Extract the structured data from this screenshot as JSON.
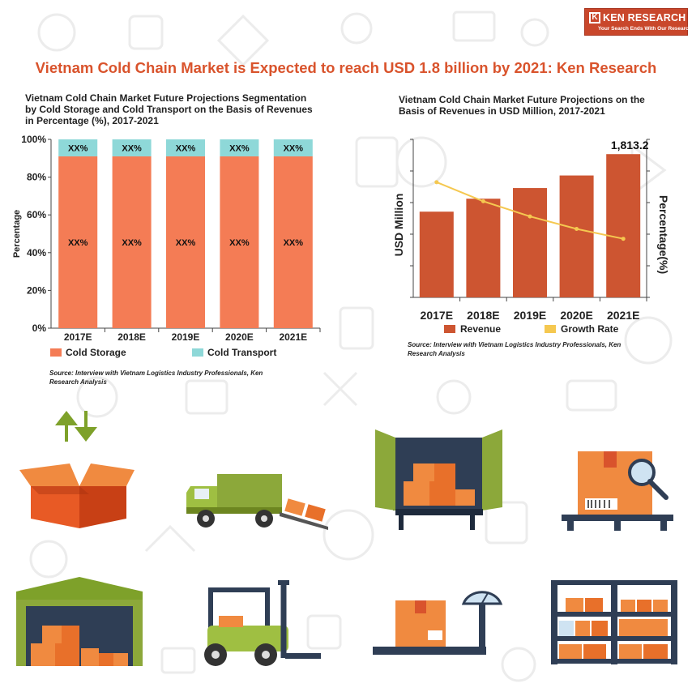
{
  "logo": {
    "name": "KEN RESEARCH",
    "tagline": "Your Search Ends With Our Research"
  },
  "headline": "Vietnam Cold Chain Market is Expected to reach USD 1.8 billion by 2021: Ken Research",
  "colors": {
    "cold_storage": "#f47c55",
    "cold_transport": "#8ed8d8",
    "revenue": "#cd5531",
    "growth": "#f5c850",
    "headline": "#d9532c"
  },
  "chart1": {
    "title_lines": [
      "Vietnam Cold Chain Market Future Projections Segmentation",
      "by Cold Storage and Cold Transport on the Basis of Revenues",
      "in Percentage (%), 2017-2021"
    ],
    "source_lines": [
      "Source: Interview with Vietnam Logistics Industry Professionals, Ken",
      "Research Analysis"
    ],
    "legend": {
      "cold_storage": "Cold Storage",
      "cold_transport": "Cold Transport"
    }
  },
  "chart2": {
    "title_lines": [
      "Vietnam Cold Chain Market Future Projections on the",
      "Basis of Revenues in USD Million, 2017-2021"
    ],
    "source_lines": [
      "Source: Interview with Vietnam Logistics Industry Professionals, Ken",
      "Research Analysis"
    ],
    "legend": {
      "revenue": "Revenue",
      "growth": "Growth Rate"
    },
    "last_label": "1,813.2"
  },
  "chart_data": [
    {
      "type": "bar",
      "stacked": true,
      "categories": [
        "2017E",
        "2018E",
        "2019E",
        "2020E",
        "2021E"
      ],
      "series": [
        {
          "name": "Cold Storage",
          "values": [
            91,
            91,
            91,
            91,
            91
          ],
          "labels": [
            "XX%",
            "XX%",
            "XX%",
            "XX%",
            "XX%"
          ]
        },
        {
          "name": "Cold Transport",
          "values": [
            9,
            9,
            9,
            9,
            9
          ],
          "labels": [
            "XX%",
            "XX%",
            "XX%",
            "XX%",
            "XX%"
          ]
        }
      ],
      "ylabel": "Percentage",
      "yticks": [
        "0%",
        "20%",
        "40%",
        "60%",
        "80%",
        "100%"
      ],
      "ylim": [
        0,
        100
      ]
    },
    {
      "type": "bar",
      "categories": [
        "2017E",
        "2018E",
        "2019E",
        "2020E",
        "2021E"
      ],
      "series": [
        {
          "name": "Revenue",
          "type": "bar",
          "axis": "left",
          "values": [
            1085,
            1249,
            1384,
            1543,
            1813.2
          ]
        },
        {
          "name": "Growth Rate",
          "type": "line",
          "axis": "right",
          "values": [
            17.5,
            14.6,
            12.3,
            10.4,
            8.9
          ]
        }
      ],
      "ylabel": "USD Million",
      "y2label": "Percentage(%)",
      "ylim": [
        0,
        2000
      ],
      "y2lim": [
        0,
        24
      ],
      "data_labels": {
        "2021E": "1,813.2"
      }
    }
  ]
}
